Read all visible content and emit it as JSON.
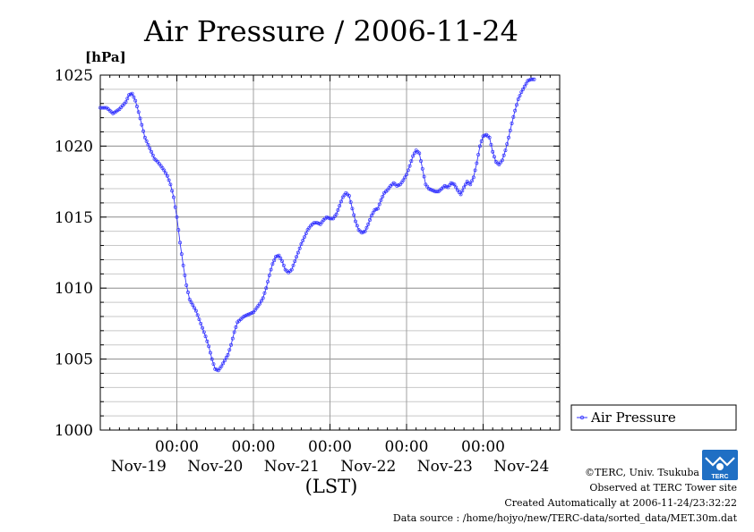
{
  "chart_data": {
    "type": "line",
    "title": "Air Pressure / 2006-11-24",
    "ylabel": "[hPa]",
    "xlabel": "(LST)",
    "ylim": [
      1000,
      1025
    ],
    "yticks": [
      1000,
      1005,
      1010,
      1015,
      1020,
      1025
    ],
    "ytick_labels": [
      "1000",
      "1005",
      "1010",
      "1015",
      "1020",
      "1025"
    ],
    "xlim_hours": [
      -24,
      120
    ],
    "xticks_hours": [
      0,
      24,
      48,
      72,
      96
    ],
    "xtick_time_labels": [
      "00:00",
      "00:00",
      "00:00",
      "00:00",
      "00:00"
    ],
    "xtick_date_labels": [
      "Nov-19",
      "Nov-20",
      "Nov-21",
      "Nov-22",
      "Nov-23",
      "Nov-24"
    ],
    "xtick_date_label_hours": [
      -12,
      12,
      36,
      60,
      84,
      108
    ],
    "grid": true,
    "legend_position": "right",
    "series": [
      {
        "name": "Air Pressure",
        "color": "#3333ff",
        "points": [
          [
            -24,
            1022.7
          ],
          [
            -22,
            1022.7
          ],
          [
            -20,
            1022.3
          ],
          [
            -18,
            1022.6
          ],
          [
            -16,
            1023.1
          ],
          [
            -15,
            1023.6
          ],
          [
            -14,
            1023.7
          ],
          [
            -13,
            1023.2
          ],
          [
            -12,
            1022.4
          ],
          [
            -11,
            1021.5
          ],
          [
            -10,
            1020.6
          ],
          [
            -9,
            1020.1
          ],
          [
            -8,
            1019.6
          ],
          [
            -7,
            1019.1
          ],
          [
            -6,
            1018.9
          ],
          [
            -5,
            1018.6
          ],
          [
            -4,
            1018.3
          ],
          [
            -3,
            1017.9
          ],
          [
            -2,
            1017.3
          ],
          [
            -1,
            1016.4
          ],
          [
            0,
            1015.0
          ],
          [
            1,
            1013.2
          ],
          [
            2,
            1011.6
          ],
          [
            3,
            1010.2
          ],
          [
            4,
            1009.2
          ],
          [
            5,
            1008.8
          ],
          [
            6,
            1008.4
          ],
          [
            7,
            1007.8
          ],
          [
            8,
            1007.2
          ],
          [
            9,
            1006.6
          ],
          [
            10,
            1005.9
          ],
          [
            11,
            1005.0
          ],
          [
            12,
            1004.3
          ],
          [
            13,
            1004.2
          ],
          [
            14,
            1004.5
          ],
          [
            15,
            1004.9
          ],
          [
            16,
            1005.3
          ],
          [
            17,
            1006.0
          ],
          [
            18,
            1006.9
          ],
          [
            19,
            1007.6
          ],
          [
            20,
            1007.8
          ],
          [
            21,
            1008.0
          ],
          [
            22,
            1008.1
          ],
          [
            23,
            1008.2
          ],
          [
            24,
            1008.3
          ],
          [
            25,
            1008.6
          ],
          [
            26,
            1008.9
          ],
          [
            27,
            1009.3
          ],
          [
            28,
            1010.0
          ],
          [
            29,
            1010.9
          ],
          [
            30,
            1011.7
          ],
          [
            31,
            1012.2
          ],
          [
            32,
            1012.3
          ],
          [
            33,
            1011.9
          ],
          [
            34,
            1011.3
          ],
          [
            35,
            1011.1
          ],
          [
            36,
            1011.3
          ],
          [
            37,
            1011.9
          ],
          [
            38,
            1012.5
          ],
          [
            39,
            1013.1
          ],
          [
            40,
            1013.6
          ],
          [
            41,
            1014.1
          ],
          [
            42,
            1014.4
          ],
          [
            43,
            1014.6
          ],
          [
            44,
            1014.6
          ],
          [
            45,
            1014.5
          ],
          [
            46,
            1014.8
          ],
          [
            47,
            1015.0
          ],
          [
            48,
            1014.9
          ],
          [
            49,
            1014.9
          ],
          [
            50,
            1015.2
          ],
          [
            51,
            1015.8
          ],
          [
            52,
            1016.4
          ],
          [
            53,
            1016.7
          ],
          [
            54,
            1016.5
          ],
          [
            55,
            1015.6
          ],
          [
            56,
            1014.7
          ],
          [
            57,
            1014.1
          ],
          [
            58,
            1013.9
          ],
          [
            59,
            1014.0
          ],
          [
            60,
            1014.5
          ],
          [
            61,
            1015.1
          ],
          [
            62,
            1015.5
          ],
          [
            63,
            1015.6
          ],
          [
            64,
            1016.2
          ],
          [
            65,
            1016.7
          ],
          [
            66,
            1016.9
          ],
          [
            67,
            1017.2
          ],
          [
            68,
            1017.4
          ],
          [
            69,
            1017.2
          ],
          [
            70,
            1017.3
          ],
          [
            71,
            1017.6
          ],
          [
            72,
            1018.0
          ],
          [
            73,
            1018.6
          ],
          [
            74,
            1019.3
          ],
          [
            75,
            1019.7
          ],
          [
            76,
            1019.5
          ],
          [
            77,
            1018.4
          ],
          [
            78,
            1017.3
          ],
          [
            79,
            1017.0
          ],
          [
            80,
            1016.9
          ],
          [
            81,
            1016.8
          ],
          [
            82,
            1016.8
          ],
          [
            83,
            1017.0
          ],
          [
            84,
            1017.2
          ],
          [
            85,
            1017.1
          ],
          [
            86,
            1017.4
          ],
          [
            87,
            1017.3
          ],
          [
            88,
            1016.9
          ],
          [
            89,
            1016.6
          ],
          [
            90,
            1017.1
          ],
          [
            91,
            1017.5
          ],
          [
            92,
            1017.3
          ],
          [
            93,
            1017.8
          ],
          [
            94,
            1018.8
          ],
          [
            95,
            1020.0
          ],
          [
            96,
            1020.7
          ],
          [
            97,
            1020.8
          ],
          [
            98,
            1020.6
          ],
          [
            99,
            1019.6
          ],
          [
            100,
            1018.9
          ],
          [
            101,
            1018.7
          ],
          [
            102,
            1019.0
          ],
          [
            103,
            1019.7
          ],
          [
            104,
            1020.6
          ],
          [
            105,
            1021.6
          ],
          [
            106,
            1022.5
          ],
          [
            107,
            1023.3
          ],
          [
            108,
            1023.8
          ],
          [
            109,
            1024.2
          ],
          [
            110,
            1024.6
          ],
          [
            111,
            1024.7
          ],
          [
            112,
            1024.7
          ]
        ]
      }
    ]
  },
  "footer": {
    "copyright": "©TERC, Univ. Tsukuba",
    "observed": "Observed at TERC Tower site",
    "created": "Created Automatically at 2006-11-24/23:32:22",
    "source": "Data source : /home/hojyo/new/TERC-data/sorted_data/MET.30m.dat"
  },
  "logo": {
    "text": "TERC"
  }
}
